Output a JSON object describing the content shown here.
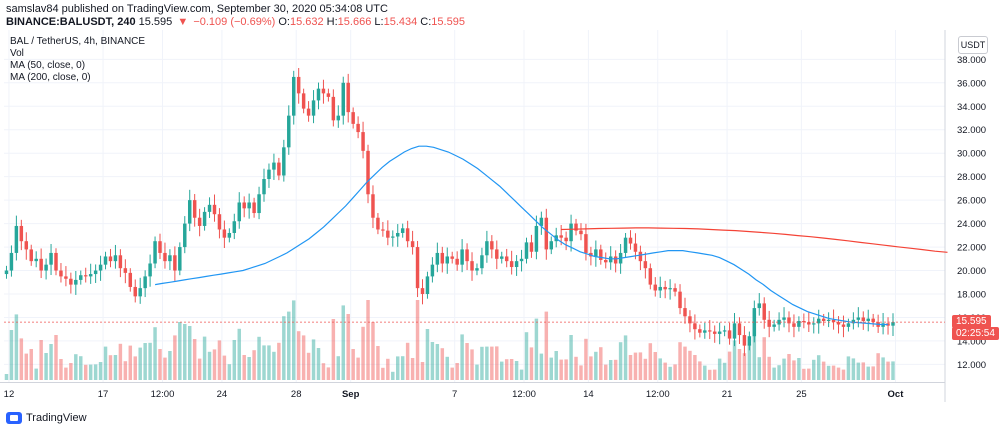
{
  "header": {
    "publisher": "samslav84 published on TradingView.com, September 30, 2020 05:34:08 UTC",
    "symbol": "BINANCE:BALUSDT, 240",
    "last": "15.595",
    "change": "−0.109 (−0.69%)",
    "open_label": "O:",
    "open": "15.632",
    "high_label": "H:",
    "high": "15.666",
    "low_label": "L:",
    "low": "15.434",
    "close_label": "C:",
    "close": "15.595"
  },
  "legend": {
    "title": "BAL / TetherUS, 4h, BINANCE",
    "vol": "Vol",
    "ma50": "MA (50, close, 0)",
    "ma200": "MA (200, close, 0)"
  },
  "axis_currency": "USDT",
  "price_tag": {
    "value": "15.595",
    "countdown": "02:25:54"
  },
  "footer": {
    "brand": "TradingView"
  },
  "colors": {
    "up": "#26a69a",
    "down": "#ef5350",
    "ma50": "#2196f3",
    "ma200": "#f44336",
    "grid": "#f0f3fa",
    "axis_text": "#131722"
  },
  "chart_data": {
    "type": "candlestick",
    "title": "BAL / TetherUS, 4h, BINANCE",
    "ylim": [
      10.5,
      40.5
    ],
    "y_ticks": [
      12,
      14,
      16,
      18,
      20,
      22,
      24,
      26,
      28,
      30,
      32,
      34,
      36,
      38
    ],
    "y_tick_labels": [
      "12.000",
      "14.000",
      "16.000",
      "18.000",
      "20.000",
      "22.000",
      "24.000",
      "26.000",
      "28.000",
      "30.000",
      "32.000",
      "34.000",
      "36.000",
      "38.000"
    ],
    "x_ticks": [
      "12",
      "17",
      "12:00",
      "24",
      "28",
      "Sep",
      "7",
      "12:00",
      "14",
      "12:00",
      "21",
      "25",
      "Oct"
    ],
    "x_tick_positions": [
      0.5,
      19.5,
      31.5,
      43.5,
      58.5,
      69.5,
      90.5,
      104.5,
      117.5,
      131.5,
      145.5,
      160.5,
      179.5
    ],
    "grid": true,
    "closes": [
      20,
      21.5,
      23.8,
      22.5,
      21.8,
      20.8,
      21,
      20,
      20.5,
      21.5,
      20,
      19.5,
      19.3,
      18.8,
      19.2,
      19.6,
      19.5,
      19.7,
      20,
      20.5,
      21.2,
      20.8,
      21.3,
      20.2,
      19.8,
      18.6,
      17.8,
      18.5,
      19.5,
      20.6,
      22.5,
      21.5,
      20.8,
      21.3,
      20,
      22,
      24,
      26,
      24.5,
      23.8,
      25,
      25.6,
      24.8,
      23.5,
      22.8,
      23.2,
      24.2,
      25.8,
      25.3,
      25.8,
      24.9,
      26.5,
      27.8,
      28.6,
      29.2,
      28.1,
      30.5,
      33.2,
      36.5,
      35.1,
      33.8,
      33.2,
      34.5,
      35.5,
      35.1,
      34.8,
      32.8,
      33.2,
      36,
      33.5,
      32.5,
      31.8,
      30.2,
      26.5,
      24.5,
      23.5,
      23.4,
      22.8,
      22.9,
      23.2,
      23.6,
      22.5,
      22,
      18.5,
      18,
      19.5,
      20.5,
      21.5,
      20.6,
      21.2,
      21,
      20.5,
      21.8,
      20.8,
      20,
      20.2,
      21.3,
      22.5,
      21.8,
      21,
      21.2,
      20.8,
      20.3,
      20.8,
      21,
      22.4,
      21.6,
      23.8,
      24.5,
      21.8,
      22.5,
      23,
      22.8,
      22.5,
      24,
      23.4,
      23.1,
      21.5,
      21.2,
      21.8,
      20.9,
      20.7,
      21.2,
      20.6,
      21.5,
      22.8,
      22.3,
      21.6,
      20.8,
      20.2,
      18.8,
      18.3,
      18.6,
      18.4,
      18.5,
      18.2,
      16.8,
      16.1,
      15.5,
      15,
      14.7,
      14.9,
      14.8,
      14.6,
      14.8,
      14.9,
      14.2,
      15.5,
      14.5,
      13.6,
      14.4,
      16.8,
      17.2,
      15.8,
      15.2,
      15.4,
      15.8,
      16,
      15.5,
      15.2,
      15.7,
      15.6,
      15.4,
      15.5,
      15.9,
      15.7,
      15.8,
      15.6,
      15.4,
      15.2,
      15.5,
      15.8,
      16,
      15.7,
      15.9,
      15.6,
      15.2,
      15.5,
      15.3,
      15.6
    ],
    "ma50": [
      18.8,
      18.9,
      19,
      19.1,
      19.2,
      19.3,
      19.4,
      19.5,
      19.6,
      19.7,
      19.8,
      19.9,
      20,
      20.2,
      20.4,
      20.6,
      20.9,
      21.2,
      21.5,
      21.9,
      22.3,
      22.7,
      23.2,
      23.7,
      24.3,
      24.9,
      25.5,
      26.2,
      26.9,
      27.6,
      28.2,
      28.8,
      29.3,
      29.7,
      30.1,
      30.4,
      30.6,
      30.6,
      30.5,
      30.3,
      30.1,
      29.8,
      29.5,
      29.1,
      28.7,
      28.2,
      27.7,
      27.2,
      26.6,
      26,
      25.4,
      24.8,
      24.2,
      23.6,
      23.1,
      22.6,
      22.2,
      21.9,
      21.6,
      21.4,
      21.2,
      21.1,
      21,
      21,
      21.1,
      21.2,
      21.3,
      21.4,
      21.5,
      21.6,
      21.7,
      21.7,
      21.7,
      21.6,
      21.5,
      21.4,
      21.3,
      21.1,
      20.8,
      20.5,
      20.1,
      19.7,
      19.2,
      18.8,
      18.3,
      17.9,
      17.5,
      17.1,
      16.8,
      16.5,
      16.3,
      16.1,
      15.9,
      15.8,
      15.7,
      15.6,
      15.55,
      15.5,
      15.45,
      15.4,
      15.4
    ],
    "ma200": [
      23.5,
      23.52,
      23.55,
      23.58,
      23.6,
      23.62,
      23.63,
      23.63,
      23.62,
      23.6,
      23.58,
      23.55,
      23.5,
      23.45,
      23.4,
      23.33,
      23.25,
      23.17,
      23.08,
      22.98,
      22.88,
      22.77,
      22.65,
      22.53,
      22.4,
      22.28,
      22.15,
      22.02,
      21.9,
      21.78,
      21.65,
      21.55
    ]
  }
}
